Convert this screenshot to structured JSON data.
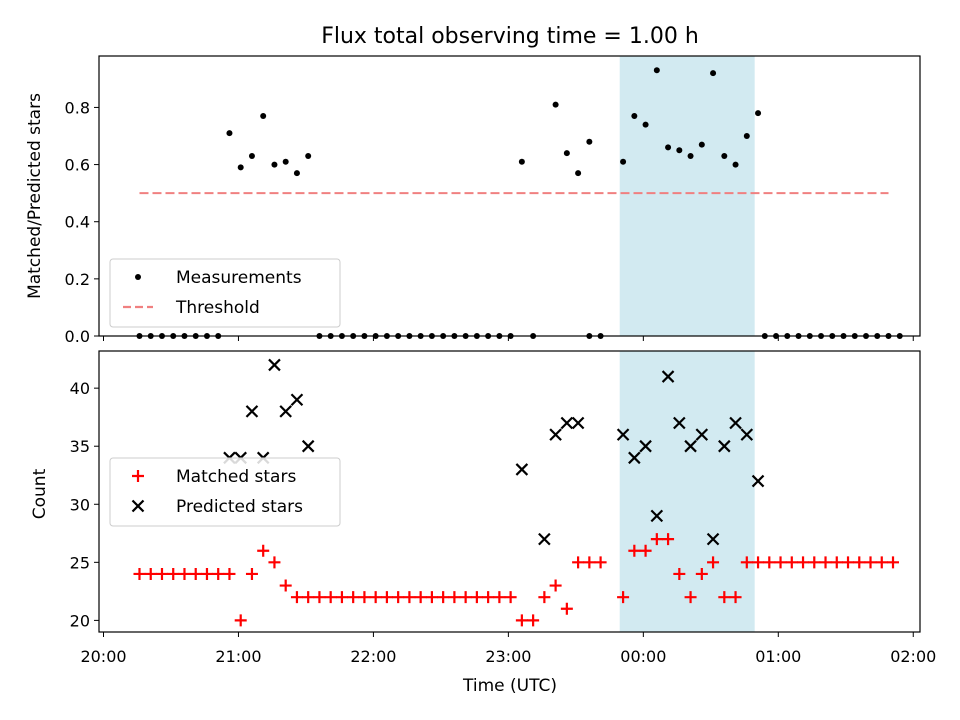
{
  "figure": {
    "title": "Flux total observing time = 1.00 h",
    "xlabel": "Time (UTC)",
    "x_ticks": [
      {
        "t": 0,
        "label": "20:00"
      },
      {
        "t": 60,
        "label": "21:00"
      },
      {
        "t": 120,
        "label": "22:00"
      },
      {
        "t": 180,
        "label": "23:00"
      },
      {
        "t": 240,
        "label": "00:00"
      },
      {
        "t": 300,
        "label": "01:00"
      },
      {
        "t": 360,
        "label": "02:00"
      }
    ],
    "x_range": [
      -2,
      363
    ],
    "shaded_interval": {
      "start": 229.5,
      "end": 289.5,
      "color": "#add8e6"
    }
  },
  "chart_data": [
    {
      "type": "scatter",
      "ylabel": "Matched/Predicted stars",
      "ylim": [
        0,
        0.98
      ],
      "y_ticks": [
        "0.0",
        "0.2",
        "0.4",
        "0.6",
        "0.8"
      ],
      "legend_position": "lower-left",
      "series": [
        {
          "name": "Measurements",
          "marker": "dot",
          "color": "#000000",
          "points": [
            [
              16,
              0
            ],
            [
              21,
              0
            ],
            [
              26,
              0
            ],
            [
              31,
              0
            ],
            [
              36,
              0
            ],
            [
              41,
              0
            ],
            [
              46,
              0
            ],
            [
              51,
              0
            ],
            [
              56,
              0.71
            ],
            [
              61,
              0.59
            ],
            [
              66,
              0.63
            ],
            [
              71,
              0.77
            ],
            [
              76,
              0.6
            ],
            [
              81,
              0.61
            ],
            [
              86,
              0.57
            ],
            [
              91,
              0.63
            ],
            [
              96,
              0
            ],
            [
              101,
              0
            ],
            [
              106,
              0
            ],
            [
              111,
              0
            ],
            [
              116,
              0
            ],
            [
              121,
              0
            ],
            [
              126,
              0
            ],
            [
              131,
              0
            ],
            [
              136,
              0
            ],
            [
              141,
              0
            ],
            [
              146,
              0
            ],
            [
              151,
              0
            ],
            [
              156,
              0
            ],
            [
              161,
              0
            ],
            [
              166,
              0
            ],
            [
              171,
              0
            ],
            [
              176,
              0
            ],
            [
              181,
              0
            ],
            [
              191,
              0
            ],
            [
              216,
              0
            ],
            [
              221,
              0
            ],
            [
              186,
              0.61
            ],
            [
              201,
              0.81
            ],
            [
              206,
              0.64
            ],
            [
              211,
              0.57
            ],
            [
              216,
              0.68
            ],
            [
              231,
              0.61
            ],
            [
              236,
              0.77
            ],
            [
              241,
              0.74
            ],
            [
              246,
              0.93
            ],
            [
              251,
              0.66
            ],
            [
              256,
              0.65
            ],
            [
              261,
              0.63
            ],
            [
              266,
              0.67
            ],
            [
              271,
              0.92
            ],
            [
              276,
              0.63
            ],
            [
              281,
              0.6
            ],
            [
              286,
              0.7
            ],
            [
              291,
              0.78
            ],
            [
              294,
              0
            ],
            [
              299,
              0
            ],
            [
              304,
              0
            ],
            [
              309,
              0
            ],
            [
              314,
              0
            ],
            [
              319,
              0
            ],
            [
              324,
              0
            ],
            [
              329,
              0
            ],
            [
              334,
              0
            ],
            [
              339,
              0
            ],
            [
              344,
              0
            ],
            [
              349,
              0
            ],
            [
              354,
              0
            ]
          ]
        },
        {
          "name": "Threshold",
          "marker": "dashed-line",
          "color": "#f08080",
          "points": [
            [
              16,
              0.5
            ],
            [
              349,
              0.5
            ]
          ]
        }
      ]
    },
    {
      "type": "scatter",
      "ylabel": "Count",
      "ylim": [
        19,
        43.2
      ],
      "y_ticks": [
        "20",
        "25",
        "30",
        "35",
        "40"
      ],
      "legend_position": "center-left",
      "series": [
        {
          "name": "Matched stars",
          "marker": "plus",
          "color": "#ff0000",
          "points": [
            [
              16,
              24
            ],
            [
              21,
              24
            ],
            [
              26,
              24
            ],
            [
              31,
              24
            ],
            [
              36,
              24
            ],
            [
              41,
              24
            ],
            [
              46,
              24
            ],
            [
              51,
              24
            ],
            [
              56,
              24
            ],
            [
              61,
              20
            ],
            [
              66,
              24
            ],
            [
              71,
              26
            ],
            [
              76,
              25
            ],
            [
              81,
              23
            ],
            [
              86,
              22
            ],
            [
              91,
              22
            ],
            [
              96,
              22
            ],
            [
              101,
              22
            ],
            [
              106,
              22
            ],
            [
              111,
              22
            ],
            [
              116,
              22
            ],
            [
              121,
              22
            ],
            [
              126,
              22
            ],
            [
              131,
              22
            ],
            [
              136,
              22
            ],
            [
              141,
              22
            ],
            [
              146,
              22
            ],
            [
              151,
              22
            ],
            [
              156,
              22
            ],
            [
              161,
              22
            ],
            [
              166,
              22
            ],
            [
              171,
              22
            ],
            [
              176,
              22
            ],
            [
              181,
              22
            ],
            [
              186,
              20
            ],
            [
              191,
              20
            ],
            [
              196,
              22
            ],
            [
              201,
              23
            ],
            [
              206,
              21
            ],
            [
              211,
              25
            ],
            [
              216,
              25
            ],
            [
              221,
              25
            ],
            [
              231,
              22
            ],
            [
              236,
              26
            ],
            [
              241,
              26
            ],
            [
              246,
              27
            ],
            [
              251,
              27
            ],
            [
              256,
              24
            ],
            [
              261,
              22
            ],
            [
              266,
              24
            ],
            [
              271,
              25
            ],
            [
              276,
              22
            ],
            [
              281,
              22
            ],
            [
              286,
              25
            ],
            [
              291,
              25
            ],
            [
              296,
              25
            ],
            [
              301,
              25
            ],
            [
              306,
              25
            ],
            [
              311,
              25
            ],
            [
              316,
              25
            ],
            [
              321,
              25
            ],
            [
              326,
              25
            ],
            [
              331,
              25
            ],
            [
              336,
              25
            ],
            [
              341,
              25
            ],
            [
              346,
              25
            ],
            [
              351,
              25
            ]
          ]
        },
        {
          "name": "Predicted stars",
          "marker": "x",
          "color": "#000000",
          "points": [
            [
              56,
              34
            ],
            [
              61,
              34
            ],
            [
              66,
              38
            ],
            [
              71,
              34
            ],
            [
              76,
              42
            ],
            [
              81,
              38
            ],
            [
              86,
              39
            ],
            [
              91,
              35
            ],
            [
              186,
              33
            ],
            [
              196,
              27
            ],
            [
              201,
              36
            ],
            [
              206,
              37
            ],
            [
              211,
              37
            ],
            [
              231,
              36
            ],
            [
              236,
              34
            ],
            [
              241,
              35
            ],
            [
              246,
              29
            ],
            [
              251,
              41
            ],
            [
              256,
              37
            ],
            [
              261,
              35
            ],
            [
              266,
              36
            ],
            [
              271,
              27
            ],
            [
              276,
              35
            ],
            [
              281,
              37
            ],
            [
              286,
              36
            ],
            [
              291,
              32
            ]
          ]
        }
      ]
    }
  ]
}
